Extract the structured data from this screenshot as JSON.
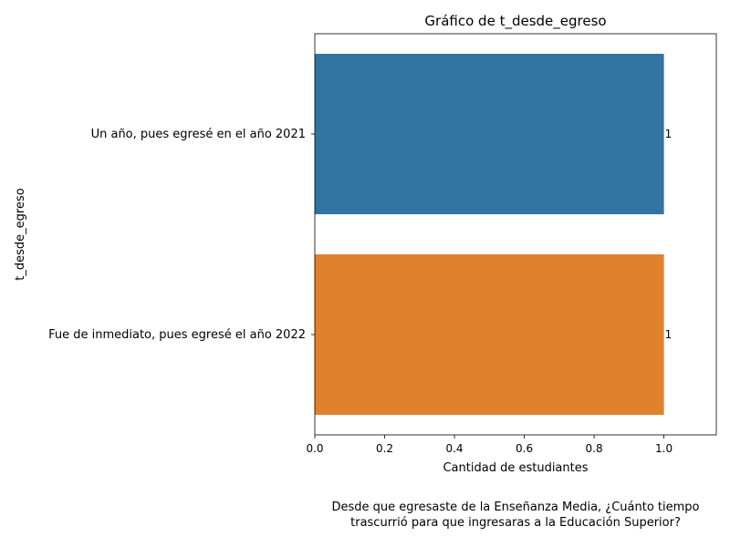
{
  "chart_data": {
    "type": "bar",
    "orientation": "horizontal",
    "title": "Gráfico de t_desde_egreso",
    "xlabel": "Cantidad de estudiantes",
    "ylabel": "t_desde_egreso",
    "categories": [
      "Un año, pues egresé en el año 2021",
      "Fue de inmediato, pues egresé el año 2022"
    ],
    "values": [
      1,
      1
    ],
    "data_labels": [
      "1",
      "1"
    ],
    "colors": [
      "#3274a1",
      "#e1812c"
    ],
    "xlim": [
      0,
      1.15
    ],
    "xticks": [
      "0.0",
      "0.2",
      "0.4",
      "0.6",
      "0.8",
      "1.0"
    ],
    "grid": false,
    "legend": "none"
  },
  "caption": {
    "line1": "Desde que egresaste de la Enseñanza Media, ¿Cuánto tiempo",
    "line2": "trascurrió para que ingresaras a la Educación Superior?"
  }
}
